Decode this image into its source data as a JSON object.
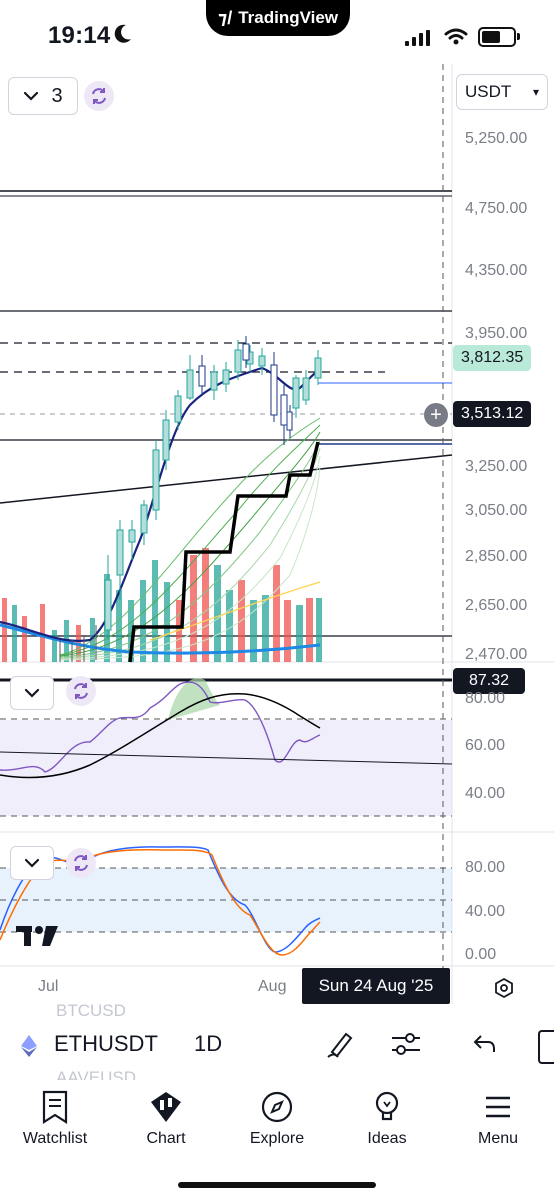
{
  "status_bar": {
    "time": "19:14"
  },
  "app_brand": "TradingView",
  "chart": {
    "currency": "USDT",
    "indicator_count": "3",
    "price_axis": [
      "5,250.00",
      "4,750.00",
      "4,350.00",
      "3,950.00",
      "3,250.00",
      "3,050.00",
      "2,850.00",
      "2,650.00",
      "2,470.00"
    ],
    "last_price": "3,812.35",
    "crosshair_price": "3,513.12",
    "rsi_value": "87.32",
    "rsi_axis": [
      "80.00",
      "60.00",
      "40.00"
    ],
    "stoch_axis": [
      "80.00",
      "40.00",
      "0.00"
    ],
    "time_axis": [
      "Jul",
      "Aug"
    ],
    "crosshair_date": "Sun 24 Aug '25"
  },
  "symbol_bar": {
    "symbol": "ETHUSDT",
    "interval": "1D",
    "ghost_above": "BTCUSD",
    "ghost_below": "AAVEUSD"
  },
  "tabs": [
    {
      "label": "Watchlist",
      "icon": "watchlist-icon"
    },
    {
      "label": "Chart",
      "icon": "chart-icon"
    },
    {
      "label": "Explore",
      "icon": "compass-icon"
    },
    {
      "label": "Ideas",
      "icon": "lightbulb-icon"
    },
    {
      "label": "Menu",
      "icon": "menu-icon"
    }
  ],
  "colors": {
    "up_candle": "#26a69a",
    "down_candle": "#ef5350",
    "last_price_tag": "#b9ead7",
    "rsi_line": "#7e57c2",
    "ma_line": "#1e3a8a",
    "stoch_k": "#2962ff",
    "stoch_d": "#ff6d00"
  }
}
